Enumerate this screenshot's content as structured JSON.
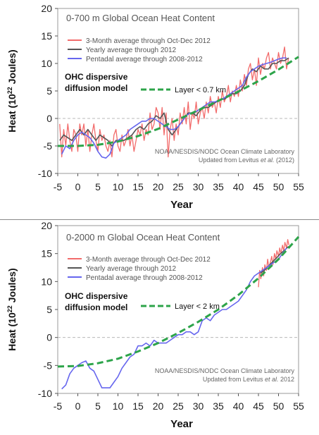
{
  "chart_data": [
    {
      "type": "line",
      "title": "0-700 m Global Ocean Heat Content",
      "xlabel": "Year",
      "ylabel_prefix": "Heat (10",
      "ylabel_sup": "22",
      "ylabel_suffix": " Joules)",
      "xlim": [
        -5,
        55
      ],
      "ylim": [
        -10,
        20
      ],
      "xticks": [
        -5,
        0,
        5,
        10,
        15,
        20,
        25,
        30,
        35,
        40,
        45,
        50,
        55
      ],
      "yticks": [
        -10,
        -5,
        0,
        5,
        10,
        15,
        20
      ],
      "legend_position": "top-left",
      "series": [
        {
          "name": "3-Month average through Oct-Dec 2012",
          "color": "#f26b6b",
          "x": [
            -4.5,
            -4,
            -3.5,
            -3,
            -2.5,
            -2,
            -1.5,
            -1,
            -0.5,
            0,
            0.5,
            1,
            1.5,
            2,
            2.5,
            3,
            3.5,
            4,
            4.5,
            5,
            5.5,
            6,
            6.5,
            7,
            7.5,
            8,
            8.5,
            9,
            9.5,
            10,
            10.5,
            11,
            11.5,
            12,
            12.5,
            13,
            13.5,
            14,
            14.5,
            15,
            15.5,
            16,
            16.5,
            17,
            17.5,
            18,
            18.5,
            19,
            19.5,
            20,
            20.5,
            21,
            21.5,
            22,
            22.5,
            23,
            23.5,
            24,
            24.5,
            25,
            25.5,
            26,
            26.5,
            27,
            27.5,
            28,
            28.5,
            29,
            29.5,
            30,
            30.5,
            31,
            31.5,
            32,
            32.5,
            33,
            33.5,
            34,
            34.5,
            35,
            35.5,
            36,
            36.5,
            37,
            37.5,
            38,
            38.5,
            39,
            39.5,
            40,
            40.5,
            41,
            41.5,
            42,
            42.5,
            43,
            43.5,
            44,
            44.5,
            45,
            45.5,
            46,
            46.5,
            47,
            47.5,
            48,
            48.5,
            49,
            49.5,
            50,
            50.5,
            51,
            51.5,
            52,
            52.5
          ],
          "values": [
            -1,
            -7,
            -2,
            -5,
            -1,
            -4,
            -6,
            -2,
            -3,
            -6,
            -1,
            -3,
            -1,
            -5,
            -2,
            -6,
            -3,
            -1,
            -4,
            -6,
            -2,
            -4,
            -3,
            -5,
            -6,
            -4,
            -7,
            -3,
            -2,
            -5,
            -6,
            -3,
            -5,
            -4,
            -2,
            -5,
            -3,
            -6,
            -4,
            -2,
            -3,
            -1,
            -4,
            -2,
            -3,
            1,
            -2,
            -1,
            2,
            1,
            -2,
            2,
            -3,
            1,
            -7,
            -2,
            0,
            -4,
            -1,
            -3,
            1,
            -1,
            2,
            -1,
            3,
            -2,
            1,
            0,
            3,
            -1,
            1,
            2,
            0,
            3,
            1,
            4,
            2,
            3,
            1,
            4,
            2,
            5,
            3,
            4,
            6,
            3,
            5,
            4,
            6,
            4,
            7,
            5,
            8,
            6,
            9,
            10,
            7,
            9,
            6,
            11,
            8,
            10,
            9,
            11,
            12,
            9,
            11,
            10,
            9,
            12,
            10,
            11,
            13,
            9,
            11
          ]
        },
        {
          "name": "Yearly average through 2012",
          "color": "#555555",
          "x": [
            -4.5,
            -3.5,
            -2.5,
            -1.5,
            -0.5,
            0.5,
            1.5,
            2.5,
            3.5,
            4.5,
            5.5,
            6.5,
            7.5,
            8.5,
            9.5,
            10.5,
            11.5,
            12.5,
            13.5,
            14.5,
            15.5,
            16.5,
            17.5,
            18.5,
            19.5,
            20.5,
            21.5,
            22.5,
            23.5,
            24.5,
            25.5,
            26.5,
            27.5,
            28.5,
            29.5,
            30.5,
            31.5,
            32.5,
            33.5,
            34.5,
            35.5,
            36.5,
            37.5,
            38.5,
            39.5,
            40.5,
            41.5,
            42.5,
            43.5,
            44.5,
            45.5,
            46.5,
            47.5,
            48.5,
            49.5,
            50.5,
            51.5,
            52.5
          ],
          "values": [
            -4,
            -3,
            -3.5,
            -4,
            -3,
            -2,
            -3,
            -2,
            -3,
            -4,
            -3,
            -3.5,
            -4,
            -5,
            -4,
            -4,
            -4,
            -3.5,
            -3,
            -2,
            -1.5,
            -2,
            -1,
            -0.5,
            0.5,
            0,
            1,
            -2,
            -3,
            -2,
            -1,
            0,
            1,
            1,
            0.5,
            1.5,
            2,
            2,
            2.5,
            3,
            3.5,
            3.5,
            4,
            4.5,
            4.5,
            5,
            6,
            8,
            9,
            8.5,
            9.5,
            9,
            9,
            10,
            10,
            10.5,
            10.5,
            11
          ]
        },
        {
          "name": "Pentadal average through 2008-2012",
          "color": "#6666ee",
          "x": [
            -4,
            -3,
            -2,
            -1,
            0,
            1,
            2,
            3,
            4,
            5,
            6,
            7,
            8,
            9,
            10,
            11,
            12,
            13,
            14,
            15,
            16,
            17,
            18,
            19,
            20,
            21,
            22,
            23,
            24,
            25,
            26,
            27,
            28,
            29,
            30,
            31,
            32,
            33,
            34,
            35,
            36,
            37,
            38,
            39,
            40,
            41,
            42,
            43,
            44,
            45,
            46,
            47,
            48,
            49,
            50,
            51,
            52
          ],
          "values": [
            -6.5,
            -5,
            -5.5,
            -4,
            -3,
            -2.5,
            -3,
            -3.5,
            -4.5,
            -6,
            -7,
            -7.2,
            -6.5,
            -4.5,
            -4,
            -3.5,
            -3,
            -2,
            -1.5,
            -1,
            -0.5,
            -0.5,
            0,
            0,
            -0.5,
            -1,
            -1.5,
            -2,
            -2,
            -1.5,
            -0.5,
            0.5,
            1,
            1,
            1.5,
            2,
            2.5,
            3,
            3,
            3.2,
            3.5,
            4,
            4.5,
            5,
            5.5,
            6,
            7.5,
            8.5,
            9,
            9.5,
            9.8,
            10,
            10.2,
            10.5,
            10.8,
            11,
            11
          ]
        },
        {
          "name": "Layer < 0.7 km",
          "color": "#2da44a",
          "dashed": true,
          "x": [
            -5,
            0,
            5,
            10,
            15,
            20,
            25,
            30,
            35,
            40,
            45,
            50,
            55
          ],
          "values": [
            -5,
            -5,
            -4.8,
            -4.2,
            -3.2,
            -1.9,
            -0.2,
            1.5,
            3.2,
            4.9,
            6.8,
            8.9,
            11.2
          ]
        }
      ],
      "model_label_line1": "OHC dispersive",
      "model_label_line2": "diffusion model",
      "source_line1": "NOAA/NESDIS/NODC Ocean Climate Laboratory",
      "source_line2_prefix": "Updated from Levitus ",
      "source_line2_etal": "et al.",
      "source_line2_suffix": " (2012)"
    },
    {
      "type": "line",
      "title": "0-2000 m Global Ocean Heat Content",
      "xlabel": "Year",
      "ylabel_prefix": "Heat (10",
      "ylabel_sup": "22",
      "ylabel_suffix": " Joules)",
      "xlim": [
        -5,
        55
      ],
      "ylim": [
        -10,
        20
      ],
      "xticks": [
        -5,
        0,
        5,
        10,
        15,
        20,
        25,
        30,
        35,
        40,
        45,
        50,
        55
      ],
      "yticks": [
        -10,
        -5,
        0,
        5,
        10,
        15,
        20
      ],
      "legend_position": "top-left",
      "series": [
        {
          "name": "3-Month average through Oct-Dec 2012",
          "color": "#f26b6b",
          "x": [
            45,
            45.3,
            45.6,
            46,
            46.3,
            46.6,
            47,
            47.3,
            47.6,
            48,
            48.3,
            48.6,
            49,
            49.3,
            49.6,
            50,
            50.3,
            50.6,
            51,
            51.3,
            51.6,
            52,
            52.3,
            52.6
          ],
          "values": [
            9,
            12,
            10.5,
            12.5,
            11,
            13,
            12,
            14,
            12.5,
            13.5,
            14.5,
            13,
            15,
            14,
            15.5,
            14.5,
            16,
            15,
            16.5,
            15.5,
            17,
            16,
            17.5,
            16.5
          ]
        },
        {
          "name": "Yearly average through 2012",
          "color": "#555555",
          "x": [
            45.5,
            46.5,
            47.5,
            48.5,
            49.5,
            50.5,
            51.5,
            52.5
          ],
          "values": [
            11.5,
            12,
            12.8,
            13.5,
            14.2,
            15,
            15.6,
            16.3
          ]
        },
        {
          "name": "Pentadal average through 2008-2012",
          "color": "#6666ee",
          "x": [
            -4,
            -3,
            -2,
            -1,
            0,
            1,
            2,
            3,
            4,
            5,
            6,
            7,
            8,
            9,
            10,
            11,
            12,
            13,
            14,
            15,
            16,
            17,
            18,
            19,
            20,
            21,
            22,
            23,
            24,
            25,
            26,
            27,
            28,
            29,
            30,
            31,
            32,
            33,
            34,
            35,
            36,
            37,
            38,
            39,
            40,
            41,
            42,
            43,
            44,
            45,
            46,
            47,
            48,
            49,
            50,
            51,
            52
          ],
          "values": [
            -9.2,
            -8.5,
            -6.5,
            -5.5,
            -5,
            -4.5,
            -4.2,
            -5.5,
            -6,
            -7.5,
            -9,
            -9,
            -9,
            -8,
            -7,
            -5.5,
            -4.5,
            -3.5,
            -3,
            -1.5,
            -1.5,
            -1,
            -1.5,
            -0.5,
            -1,
            -1,
            -1,
            -0.5,
            0,
            0.5,
            0.5,
            1,
            1,
            0.5,
            1,
            3,
            3.5,
            3,
            4,
            4.5,
            5,
            5,
            5.5,
            6,
            6.5,
            7.5,
            8.5,
            10,
            11,
            11.5,
            12,
            12.5,
            13,
            13.5,
            14,
            15,
            16
          ]
        },
        {
          "name": "Layer < 2 km",
          "color": "#2da44a",
          "dashed": true,
          "x": [
            -5,
            0,
            5,
            10,
            15,
            20,
            25,
            30,
            35,
            40,
            45,
            50,
            55
          ],
          "values": [
            -5.2,
            -5.1,
            -4.6,
            -3.8,
            -2.5,
            -1,
            0.8,
            2.8,
            5,
            7.6,
            10.6,
            14,
            18
          ]
        }
      ],
      "model_label_line1": "OHC dispersive",
      "model_label_line2": "diffusion model",
      "source_line1": "NOAA/NESDIS/NODC Ocean Climate Laboratory",
      "source_line2_prefix": "Updated from Levitus ",
      "source_line2_etal": "et al.",
      "source_line2_suffix": " 2012"
    }
  ]
}
